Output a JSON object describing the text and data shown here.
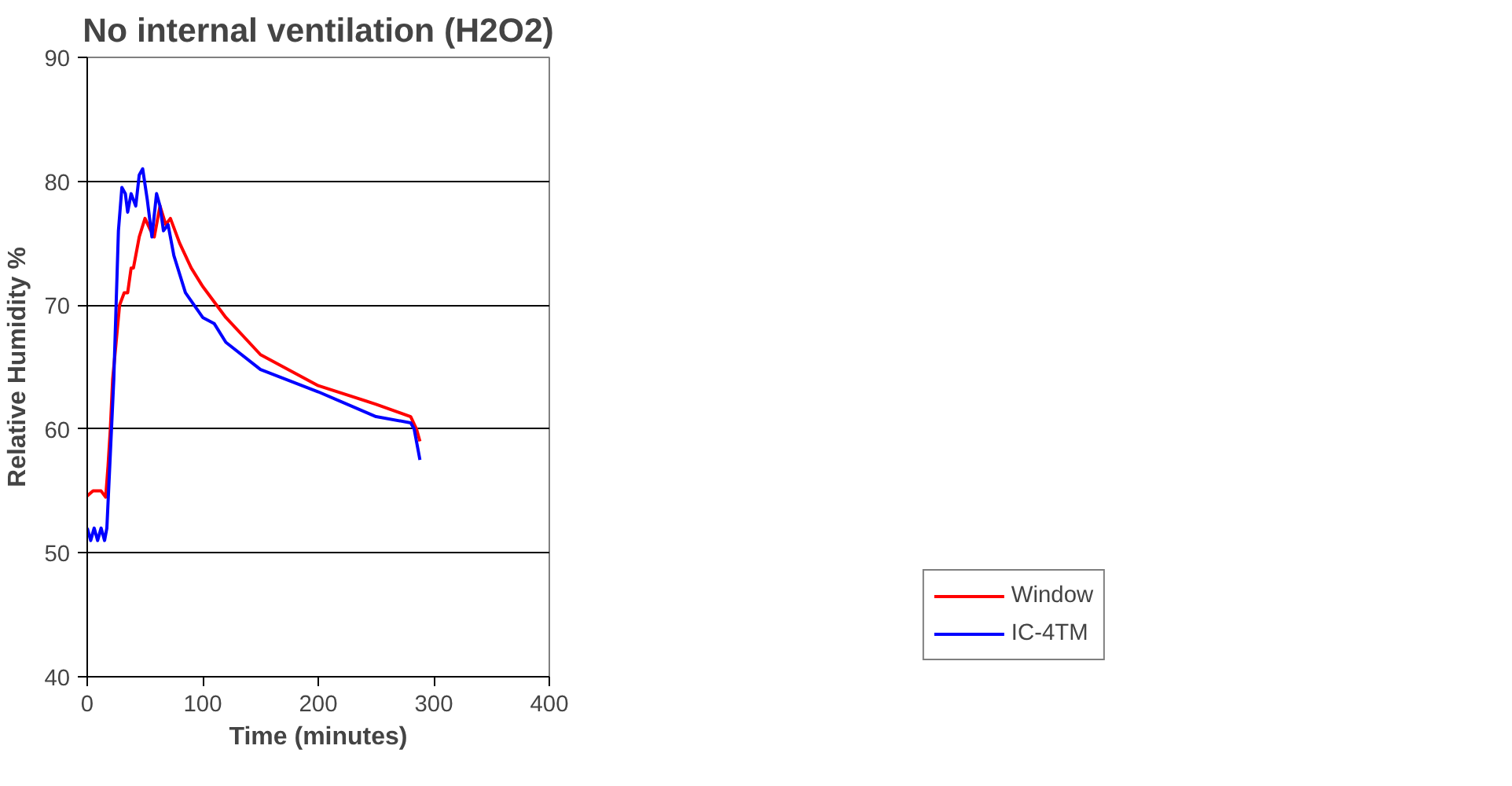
{
  "chart_data": {
    "type": "line",
    "title": "No internal ventilation (H2O2)",
    "xlabel": "Time (minutes)",
    "ylabel": "Relative Humidity %",
    "xlim": [
      0,
      400
    ],
    "xticks": [
      0,
      100,
      200,
      300,
      400
    ],
    "ylim": [
      40,
      90
    ],
    "yticks": [
      40,
      50,
      60,
      70,
      80,
      90
    ],
    "grid": "y",
    "legend": "bottom right",
    "marker": "none",
    "line_style": "solid",
    "series": [
      {
        "name": "Window",
        "color": "#ff0000",
        "x": [
          0,
          5,
          12,
          16,
          18,
          20,
          22,
          25,
          28,
          32,
          35,
          38,
          40,
          45,
          50,
          55,
          58,
          63,
          68,
          72,
          80,
          90,
          100,
          120,
          150,
          200,
          250,
          280,
          285,
          288
        ],
        "values": [
          54.6,
          55,
          55,
          54.5,
          57,
          60,
          64,
          67,
          70,
          71,
          71,
          73,
          73,
          75.5,
          77,
          76,
          75.5,
          78,
          76.5,
          77,
          75,
          73,
          71.5,
          69,
          66,
          63.5,
          62,
          61,
          60,
          59
        ]
      },
      {
        "name": "IC-4TM",
        "color": "#0000ff",
        "x": [
          0,
          3,
          6,
          9,
          12,
          15,
          17,
          20,
          23,
          25,
          27,
          30,
          33,
          35,
          38,
          42,
          45,
          48,
          52,
          56,
          60,
          63,
          66,
          70,
          75,
          85,
          100,
          110,
          120,
          150,
          200,
          250,
          280,
          283,
          286,
          288
        ],
        "values": [
          52,
          51,
          52,
          51,
          52,
          51,
          52,
          58,
          64,
          70,
          76,
          79.5,
          79,
          77.5,
          79,
          78,
          80.5,
          81,
          78.5,
          75.5,
          79,
          78,
          76,
          76.5,
          74,
          71,
          69,
          68.5,
          67,
          64.8,
          63,
          61,
          60.5,
          60,
          58.5,
          57.5
        ]
      }
    ]
  }
}
